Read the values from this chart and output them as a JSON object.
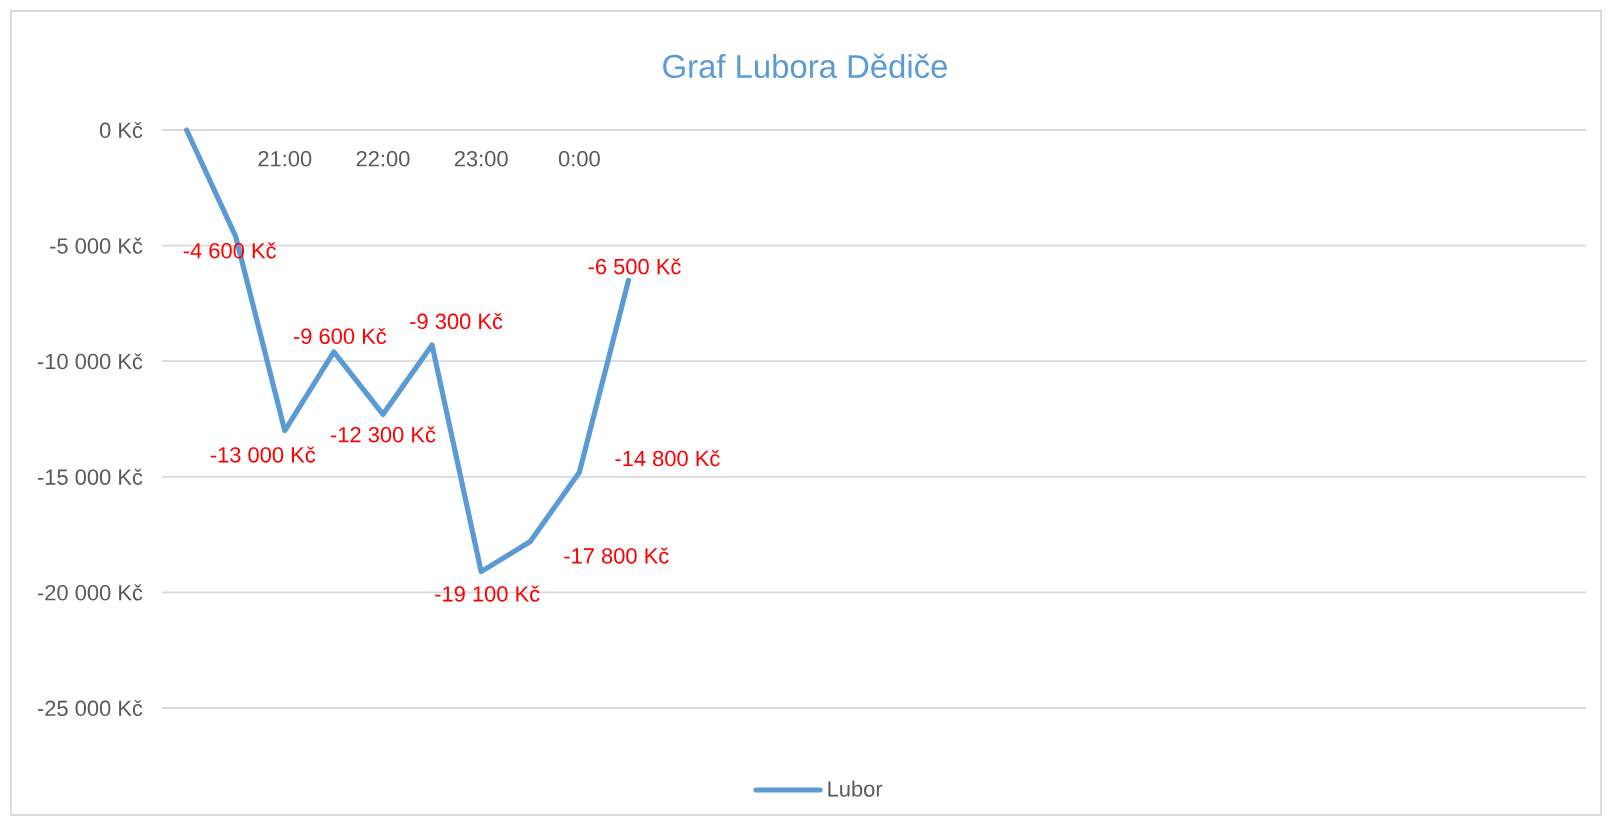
{
  "chart_data": {
    "type": "line",
    "title": "Graf Lubora Dědiče",
    "x": [
      20,
      20.5,
      21,
      21.5,
      22,
      22.5,
      23,
      23.5,
      24,
      24.5
    ],
    "series": [
      {
        "name": "Lubor",
        "color": "#5b9bd5",
        "values": [
          0,
          -4600,
          -13000,
          -9600,
          -12300,
          -9300,
          -19100,
          -17800,
          -14800,
          -6500
        ],
        "value_labels": [
          null,
          "-4 600 Kč",
          "-13 000 Kč",
          "-9 600 Kč",
          "-12 300 Kč",
          "-9 300 Kč",
          "-19 100 Kč",
          "-17 800 Kč",
          "-14 800 Kč",
          "-6 500 Kč"
        ]
      }
    ],
    "xlim": [
      19.75,
      34.25
    ],
    "xticks": [
      {
        "value": 21,
        "label": "21:00"
      },
      {
        "value": 22,
        "label": "22:00"
      },
      {
        "value": 23,
        "label": "23:00"
      },
      {
        "value": 24,
        "label": "0:00"
      }
    ],
    "ylim": [
      -25000,
      0
    ],
    "yticks": [
      {
        "value": -25000,
        "label": "-25 000 Kč"
      },
      {
        "value": -20000,
        "label": "-20 000 Kč"
      },
      {
        "value": -15000,
        "label": "-15 000 Kč"
      },
      {
        "value": -10000,
        "label": "-10 000 Kč"
      },
      {
        "value": -5000,
        "label": "-5 000 Kč"
      },
      {
        "value": 0,
        "label": "0 Kč"
      }
    ],
    "grid": "y",
    "legend": "bottom",
    "marker": "none",
    "line_style": "solid"
  }
}
